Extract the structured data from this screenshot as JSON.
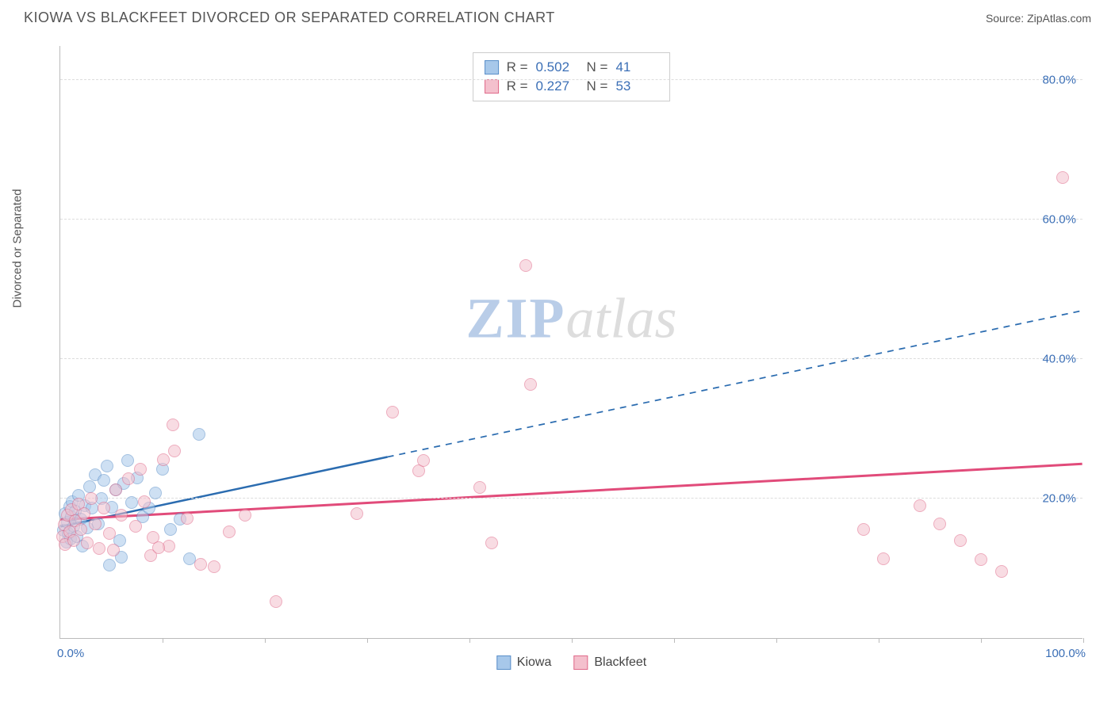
{
  "header": {
    "title": "KIOWA VS BLACKFEET DIVORCED OR SEPARATED CORRELATION CHART",
    "source_label": "Source:",
    "source_name": "ZipAtlas.com"
  },
  "chart": {
    "type": "scatter",
    "ylabel": "Divorced or Separated",
    "xlim": [
      0,
      100
    ],
    "ylim": [
      0,
      85
    ],
    "xtick_positions": [
      0,
      10,
      20,
      30,
      40,
      50,
      60,
      70,
      80,
      90,
      100
    ],
    "xaxis_labels": {
      "min": "0.0%",
      "max": "100.0%"
    },
    "ygrid": [
      {
        "value": 20,
        "label": "20.0%"
      },
      {
        "value": 40,
        "label": "40.0%"
      },
      {
        "value": 60,
        "label": "60.0%"
      },
      {
        "value": 80,
        "label": "80.0%"
      }
    ],
    "background_color": "#ffffff",
    "grid_color": "#dddddd",
    "axis_color": "#bbbbbb",
    "tick_label_color": "#3b6fb6",
    "point_radius": 8,
    "point_opacity": 0.55,
    "series": [
      {
        "name": "Kiowa",
        "fill_color": "#a7c8ea",
        "stroke_color": "#5a8fc9",
        "r_value": "0.502",
        "n_value": "41",
        "trend": {
          "x1": 0,
          "y1": 16,
          "x2": 32,
          "y2": 26,
          "solid_to_x": 32,
          "dash_to_x": 100,
          "dash_to_y": 47,
          "color": "#2b6cb0",
          "width": 2.5
        },
        "points": [
          [
            0.3,
            15.5
          ],
          [
            0.5,
            17.8
          ],
          [
            0.6,
            13.8
          ],
          [
            0.7,
            16.6
          ],
          [
            0.8,
            15.0
          ],
          [
            0.9,
            18.9
          ],
          [
            1.0,
            14.2
          ],
          [
            1.1,
            17.4
          ],
          [
            1.2,
            19.5
          ],
          [
            1.3,
            16.0
          ],
          [
            1.5,
            18.2
          ],
          [
            1.6,
            14.6
          ],
          [
            1.8,
            20.4
          ],
          [
            2.0,
            17.0
          ],
          [
            2.2,
            13.2
          ],
          [
            2.4,
            19.0
          ],
          [
            2.6,
            15.8
          ],
          [
            2.9,
            21.7
          ],
          [
            3.1,
            18.6
          ],
          [
            3.4,
            23.4
          ],
          [
            3.7,
            16.4
          ],
          [
            4.0,
            20.0
          ],
          [
            4.3,
            22.6
          ],
          [
            4.6,
            24.7
          ],
          [
            5.0,
            18.8
          ],
          [
            5.4,
            21.2
          ],
          [
            5.8,
            14.0
          ],
          [
            6.2,
            22.2
          ],
          [
            6.6,
            25.4
          ],
          [
            7.0,
            19.4
          ],
          [
            7.5,
            23.0
          ],
          [
            8.1,
            17.4
          ],
          [
            8.7,
            18.6
          ],
          [
            9.3,
            20.8
          ],
          [
            10.0,
            24.2
          ],
          [
            10.8,
            15.6
          ],
          [
            11.7,
            17.0
          ],
          [
            12.6,
            11.4
          ],
          [
            13.6,
            29.2
          ],
          [
            4.8,
            10.4
          ],
          [
            6.0,
            11.6
          ]
        ]
      },
      {
        "name": "Blackfeet",
        "fill_color": "#f4c0cd",
        "stroke_color": "#e06a8a",
        "r_value": "0.227",
        "n_value": "53",
        "trend": {
          "x1": 0,
          "y1": 17,
          "x2": 100,
          "y2": 25,
          "solid_to_x": 100,
          "color": "#e14b7a",
          "width": 3
        },
        "points": [
          [
            0.2,
            14.6
          ],
          [
            0.4,
            16.2
          ],
          [
            0.5,
            13.4
          ],
          [
            0.7,
            17.6
          ],
          [
            0.9,
            15.2
          ],
          [
            1.1,
            18.4
          ],
          [
            1.3,
            14.0
          ],
          [
            1.5,
            16.8
          ],
          [
            1.8,
            19.2
          ],
          [
            2.0,
            15.6
          ],
          [
            2.3,
            17.8
          ],
          [
            2.6,
            13.6
          ],
          [
            3.0,
            20.0
          ],
          [
            3.4,
            16.4
          ],
          [
            3.8,
            12.8
          ],
          [
            4.3,
            18.6
          ],
          [
            4.8,
            15.0
          ],
          [
            5.4,
            21.2
          ],
          [
            6.0,
            17.6
          ],
          [
            6.7,
            22.8
          ],
          [
            7.4,
            16.0
          ],
          [
            8.2,
            19.6
          ],
          [
            9.1,
            14.4
          ],
          [
            10.1,
            25.6
          ],
          [
            11.2,
            26.8
          ],
          [
            12.4,
            17.2
          ],
          [
            13.7,
            10.6
          ],
          [
            15.0,
            10.2
          ],
          [
            16.5,
            15.2
          ],
          [
            18.1,
            17.6
          ],
          [
            8.8,
            11.8
          ],
          [
            10.6,
            13.2
          ],
          [
            11.0,
            30.6
          ],
          [
            21.1,
            5.2
          ],
          [
            29.0,
            17.8
          ],
          [
            32.5,
            32.4
          ],
          [
            35.0,
            24.0
          ],
          [
            35.5,
            25.4
          ],
          [
            41.0,
            21.6
          ],
          [
            42.2,
            13.6
          ],
          [
            45.5,
            53.4
          ],
          [
            46.0,
            36.4
          ],
          [
            78.5,
            15.6
          ],
          [
            80.5,
            11.4
          ],
          [
            84.0,
            19.0
          ],
          [
            86.0,
            16.4
          ],
          [
            88.0,
            14.0
          ],
          [
            90.0,
            11.2
          ],
          [
            92.0,
            9.6
          ],
          [
            98.0,
            66.0
          ],
          [
            5.2,
            12.6
          ],
          [
            7.8,
            24.2
          ],
          [
            9.6,
            13.0
          ]
        ]
      }
    ],
    "watermark": {
      "part1": "ZIP",
      "part2": "atlas"
    },
    "legend": {
      "series1": "Kiowa",
      "series2": "Blackfeet"
    }
  }
}
